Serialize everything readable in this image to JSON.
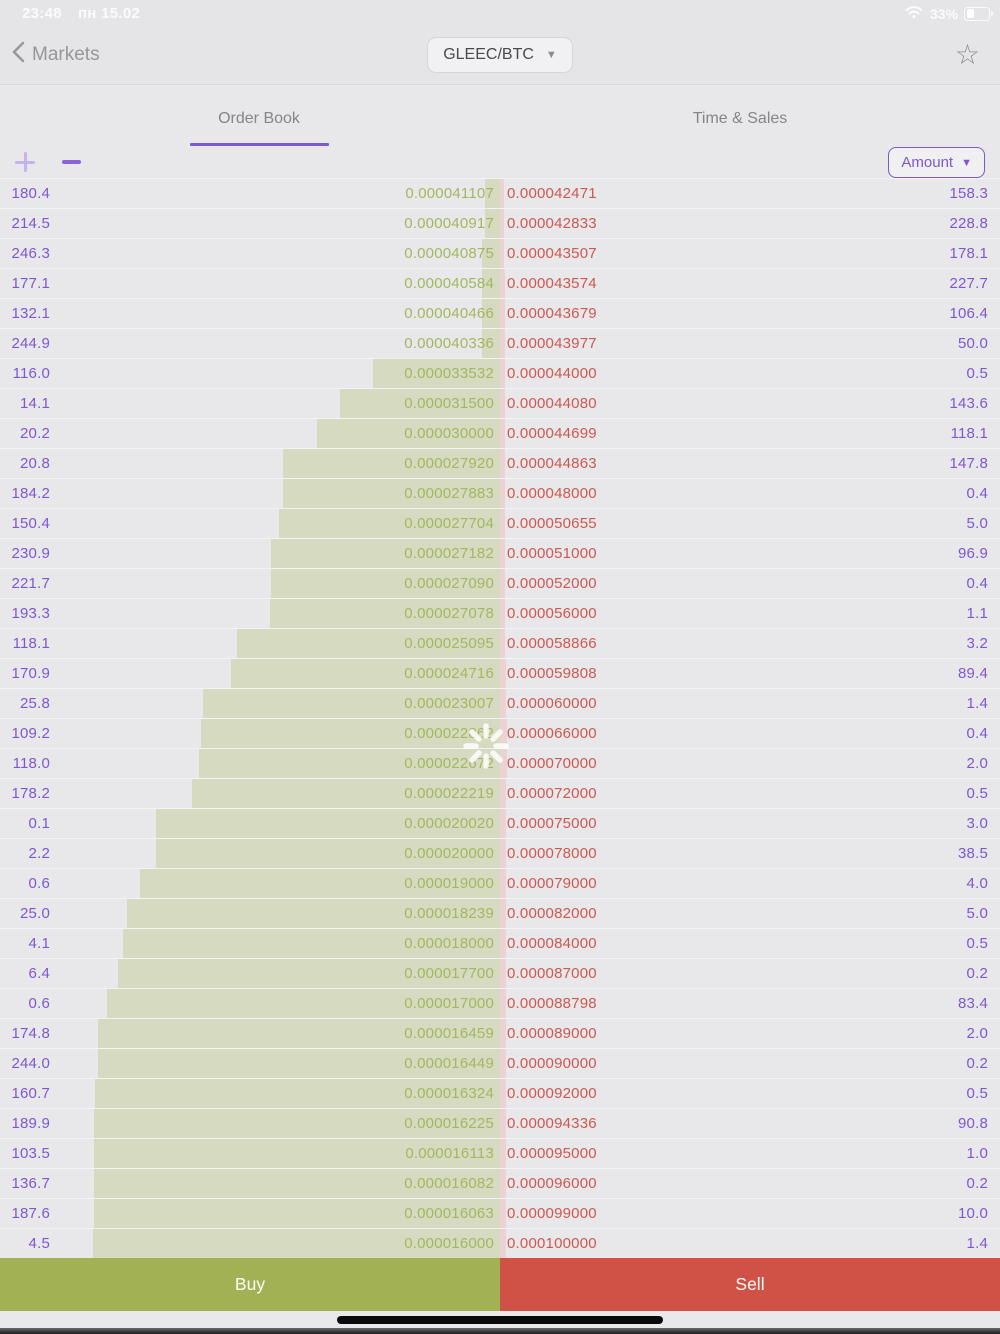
{
  "status_bar": {
    "time": "23:48",
    "date": "пн 15.02",
    "battery_percent": "33%"
  },
  "nav": {
    "back_label": "Markets",
    "pair": "GLEEC/BTC"
  },
  "tabs": {
    "order_book": "Order Book",
    "time_sales": "Time & Sales"
  },
  "controls": {
    "amount_label": "Amount"
  },
  "actions": {
    "buy_label": "Buy",
    "sell_label": "Sell"
  },
  "colors": {
    "accent": "#7c57d6",
    "amt_text": "#7e57d2",
    "bid_text": "#a4b75e",
    "ask_text": "#cd5950",
    "bid_bar": "#d6dac0",
    "ask_bar": "#ecd2d3",
    "buy": "#a2b154",
    "sell": "#d05146"
  },
  "order_book": {
    "bids": [
      {
        "amount": "180.4",
        "price": "0.000041107",
        "depth_pct": 3.0
      },
      {
        "amount": "214.5",
        "price": "0.000040917",
        "depth_pct": 3.0
      },
      {
        "amount": "246.3",
        "price": "0.000040875",
        "depth_pct": 3.6
      },
      {
        "amount": "177.1",
        "price": "0.000040584",
        "depth_pct": 3.6
      },
      {
        "amount": "132.1",
        "price": "0.000040466",
        "depth_pct": 3.6
      },
      {
        "amount": "244.9",
        "price": "0.000040336",
        "depth_pct": 3.6
      },
      {
        "amount": "116.0",
        "price": "0.000033532",
        "depth_pct": 25.4
      },
      {
        "amount": "14.1",
        "price": "0.000031500",
        "depth_pct": 32.0
      },
      {
        "amount": "20.2",
        "price": "0.000030000",
        "depth_pct": 36.6
      },
      {
        "amount": "20.8",
        "price": "0.000027920",
        "depth_pct": 43.4
      },
      {
        "amount": "184.2",
        "price": "0.000027883",
        "depth_pct": 43.4
      },
      {
        "amount": "150.4",
        "price": "0.000027704",
        "depth_pct": 44.2
      },
      {
        "amount": "230.9",
        "price": "0.000027182",
        "depth_pct": 45.8
      },
      {
        "amount": "221.7",
        "price": "0.000027090",
        "depth_pct": 45.8
      },
      {
        "amount": "193.3",
        "price": "0.000027078",
        "depth_pct": 46.0
      },
      {
        "amount": "118.1",
        "price": "0.000025095",
        "depth_pct": 52.6
      },
      {
        "amount": "170.9",
        "price": "0.000024716",
        "depth_pct": 53.8
      },
      {
        "amount": "25.8",
        "price": "0.000023007",
        "depth_pct": 59.4
      },
      {
        "amount": "109.2",
        "price": "0.000022862",
        "depth_pct": 59.8
      },
      {
        "amount": "118.0",
        "price": "0.000022672",
        "depth_pct": 60.2
      },
      {
        "amount": "178.2",
        "price": "0.000022219",
        "depth_pct": 61.6
      },
      {
        "amount": "0.1",
        "price": "0.000020020",
        "depth_pct": 68.8
      },
      {
        "amount": "2.2",
        "price": "0.000020000",
        "depth_pct": 68.8
      },
      {
        "amount": "0.6",
        "price": "0.000019000",
        "depth_pct": 72.0
      },
      {
        "amount": "25.0",
        "price": "0.000018239",
        "depth_pct": 74.6
      },
      {
        "amount": "4.1",
        "price": "0.000018000",
        "depth_pct": 75.4
      },
      {
        "amount": "6.4",
        "price": "0.000017700",
        "depth_pct": 76.4
      },
      {
        "amount": "0.6",
        "price": "0.000017000",
        "depth_pct": 78.6
      },
      {
        "amount": "174.8",
        "price": "0.000016459",
        "depth_pct": 80.4
      },
      {
        "amount": "244.0",
        "price": "0.000016449",
        "depth_pct": 80.4
      },
      {
        "amount": "160.7",
        "price": "0.000016324",
        "depth_pct": 81.0
      },
      {
        "amount": "189.9",
        "price": "0.000016225",
        "depth_pct": 81.2
      },
      {
        "amount": "103.5",
        "price": "0.000016113",
        "depth_pct": 81.2
      },
      {
        "amount": "136.7",
        "price": "0.000016082",
        "depth_pct": 81.2
      },
      {
        "amount": "187.6",
        "price": "0.000016063",
        "depth_pct": 81.2
      },
      {
        "amount": "4.5",
        "price": "0.000016000",
        "depth_pct": 81.4
      }
    ],
    "asks": [
      {
        "price": "0.000042471",
        "amount": "158.3",
        "depth_pct": 0.8
      },
      {
        "price": "0.000042833",
        "amount": "228.8",
        "depth_pct": 0.8
      },
      {
        "price": "0.000043507",
        "amount": "178.1",
        "depth_pct": 0.8
      },
      {
        "price": "0.000043574",
        "amount": "227.7",
        "depth_pct": 0.9
      },
      {
        "price": "0.000043679",
        "amount": "106.4",
        "depth_pct": 0.9
      },
      {
        "price": "0.000043977",
        "amount": "50.0",
        "depth_pct": 0.9
      },
      {
        "price": "0.000044000",
        "amount": "0.5",
        "depth_pct": 1.0
      },
      {
        "price": "0.000044080",
        "amount": "143.6",
        "depth_pct": 1.0
      },
      {
        "price": "0.000044699",
        "amount": "118.1",
        "depth_pct": 1.0
      },
      {
        "price": "0.000044863",
        "amount": "147.8",
        "depth_pct": 1.0
      },
      {
        "price": "0.000048000",
        "amount": "0.4",
        "depth_pct": 1.0
      },
      {
        "price": "0.000050655",
        "amount": "5.0",
        "depth_pct": 1.0
      },
      {
        "price": "0.000051000",
        "amount": "96.9",
        "depth_pct": 1.0
      },
      {
        "price": "0.000052000",
        "amount": "0.4",
        "depth_pct": 1.0
      },
      {
        "price": "0.000056000",
        "amount": "1.1",
        "depth_pct": 1.0
      },
      {
        "price": "0.000058866",
        "amount": "3.2",
        "depth_pct": 1.0
      },
      {
        "price": "0.000059808",
        "amount": "89.4",
        "depth_pct": 1.1
      },
      {
        "price": "0.000060000",
        "amount": "1.4",
        "depth_pct": 1.1
      },
      {
        "price": "0.000066000",
        "amount": "0.4",
        "depth_pct": 1.4
      },
      {
        "price": "0.000070000",
        "amount": "2.0",
        "depth_pct": 1.4
      },
      {
        "price": "0.000072000",
        "amount": "0.5",
        "depth_pct": 1.1
      },
      {
        "price": "0.000075000",
        "amount": "3.0",
        "depth_pct": 1.1
      },
      {
        "price": "0.000078000",
        "amount": "38.5",
        "depth_pct": 1.1
      },
      {
        "price": "0.000079000",
        "amount": "4.0",
        "depth_pct": 1.1
      },
      {
        "price": "0.000082000",
        "amount": "5.0",
        "depth_pct": 1.1
      },
      {
        "price": "0.000084000",
        "amount": "0.5",
        "depth_pct": 1.1
      },
      {
        "price": "0.000087000",
        "amount": "0.2",
        "depth_pct": 1.1
      },
      {
        "price": "0.000088798",
        "amount": "83.4",
        "depth_pct": 1.1
      },
      {
        "price": "0.000089000",
        "amount": "2.0",
        "depth_pct": 1.2
      },
      {
        "price": "0.000090000",
        "amount": "0.2",
        "depth_pct": 1.2
      },
      {
        "price": "0.000092000",
        "amount": "0.5",
        "depth_pct": 1.2
      },
      {
        "price": "0.000094336",
        "amount": "90.8",
        "depth_pct": 1.2
      },
      {
        "price": "0.000095000",
        "amount": "1.0",
        "depth_pct": 1.2
      },
      {
        "price": "0.000096000",
        "amount": "0.2",
        "depth_pct": 1.2
      },
      {
        "price": "0.000099000",
        "amount": "10.0",
        "depth_pct": 1.2
      },
      {
        "price": "0.000100000",
        "amount": "1.4",
        "depth_pct": 1.2
      }
    ]
  }
}
